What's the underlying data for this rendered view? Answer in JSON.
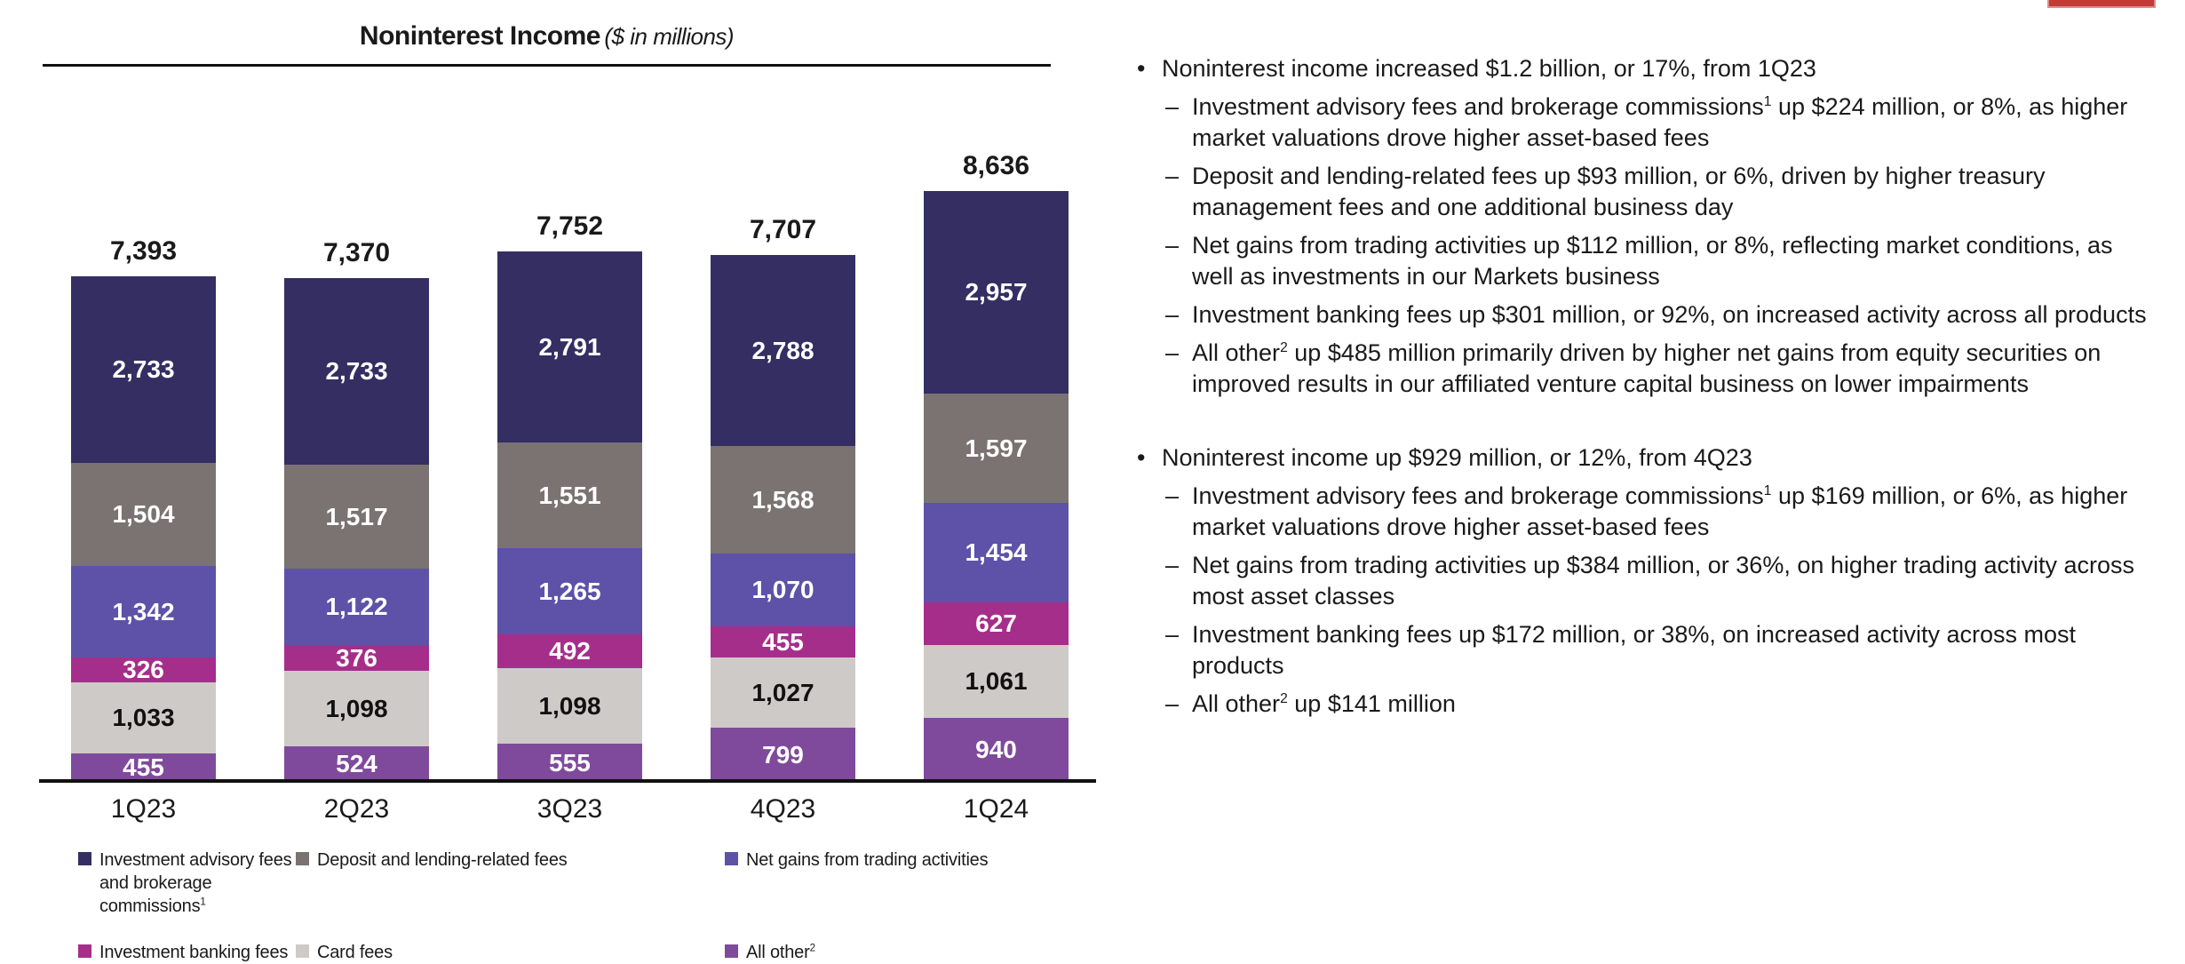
{
  "page": {
    "background": "#FFFFFF",
    "accent_bar_color": "#C23B35"
  },
  "chart": {
    "title": "Noninterest Income",
    "subtitle": "($ in millions)"
  },
  "chart_data": {
    "type": "bar",
    "stacked": true,
    "title": "Noninterest Income ($ in millions)",
    "unit": "$ in millions",
    "y_axis_visible": false,
    "grid": false,
    "legend_position": "bottom",
    "categories": [
      "1Q23",
      "2Q23",
      "3Q23",
      "4Q23",
      "1Q24"
    ],
    "totals": [
      7393,
      7370,
      7752,
      7707,
      8636
    ],
    "total_labels": [
      "7,393",
      "7,370",
      "7,752",
      "7,707",
      "8,636"
    ],
    "series": [
      {
        "name": "All other",
        "sup": "2",
        "color": "#7F4A9C",
        "label_color": "#FFFFFF",
        "values": [
          455,
          524,
          555,
          799,
          940
        ],
        "labels": [
          "455",
          "524",
          "555",
          "799",
          "940"
        ]
      },
      {
        "name": "Card fees",
        "color": "#CECAC8",
        "label_color": "#111111",
        "values": [
          1033,
          1098,
          1098,
          1027,
          1061
        ],
        "labels": [
          "1,033",
          "1,098",
          "1,098",
          "1,027",
          "1,061"
        ]
      },
      {
        "name": "Investment banking fees",
        "color": "#A62E8B",
        "label_color": "#FFFFFF",
        "values": [
          326,
          376,
          492,
          455,
          627
        ],
        "labels": [
          "326",
          "376",
          "492",
          "455",
          "627"
        ]
      },
      {
        "name": "Net gains from trading activities",
        "color": "#5D52A8",
        "label_color": "#FFFFFF",
        "values": [
          1342,
          1122,
          1265,
          1070,
          1454
        ],
        "labels": [
          "1,342",
          "1,122",
          "1,265",
          "1,070",
          "1,454"
        ]
      },
      {
        "name": "Deposit and lending-related fees",
        "color": "#7A7372",
        "label_color": "#FFFFFF",
        "values": [
          1504,
          1517,
          1551,
          1568,
          1597
        ],
        "labels": [
          "1,504",
          "1,517",
          "1,551",
          "1,568",
          "1,597"
        ]
      },
      {
        "name": "Investment advisory fees and brokerage commissions",
        "sup": "1",
        "color": "#342E63",
        "label_color": "#FFFFFF",
        "values": [
          2733,
          2733,
          2791,
          2788,
          2957
        ],
        "labels": [
          "2,733",
          "2,733",
          "2,791",
          "2,788",
          "2,957"
        ]
      }
    ]
  },
  "legend": {
    "items": [
      {
        "label": "Investment advisory fees and brokerage commissions",
        "sup": "1",
        "color": "#342E63"
      },
      {
        "label": "Deposit and lending-related fees",
        "color": "#7A7372"
      },
      {
        "label": "Net gains from trading activities",
        "color": "#5D52A8"
      },
      {
        "label": "Investment banking fees",
        "color": "#A62E8B"
      },
      {
        "label": "Card fees",
        "color": "#CECAC8"
      },
      {
        "label": "All other",
        "sup": "2",
        "color": "#7F4A9C"
      }
    ]
  },
  "bullets": {
    "groups": [
      {
        "lead": "Noninterest income increased $1.2 billion, or 17%, from 1Q23",
        "items": [
          {
            "pre": "Investment advisory fees and brokerage commissions",
            "sup": "1",
            "post": " up $224 million, or 8%, as higher market valuations drove higher asset-based fees"
          },
          {
            "pre": "Deposit and lending-related fees up $93 million, or 6%, driven by higher treasury management fees and one additional business day"
          },
          {
            "pre": "Net gains from trading activities up $112 million, or 8%, reflecting market conditions, as well as investments in our Markets business"
          },
          {
            "pre": "Investment banking fees up $301 million, or 92%, on increased activity across all products"
          },
          {
            "pre": "All other",
            "sup": "2",
            "post": " up $485 million primarily driven by higher net gains from equity securities on improved results in our affiliated venture capital business on lower impairments"
          }
        ]
      },
      {
        "lead": "Noninterest income up $929 million, or 12%, from 4Q23",
        "items": [
          {
            "pre": "Investment advisory fees and brokerage commissions",
            "sup": "1",
            "post": " up $169 million, or 6%, as higher market valuations drove higher asset-based fees"
          },
          {
            "pre": "Net gains from trading activities up $384 million, or 36%, on higher trading activity across most asset classes"
          },
          {
            "pre": "Investment banking fees up $172 million, or 38%, on increased activity across most products"
          },
          {
            "pre": "All other",
            "sup": "2",
            "post": " up $141 million"
          }
        ]
      }
    ]
  },
  "marks": {
    "bullet_glyph": "•",
    "dash_glyph": "–"
  }
}
